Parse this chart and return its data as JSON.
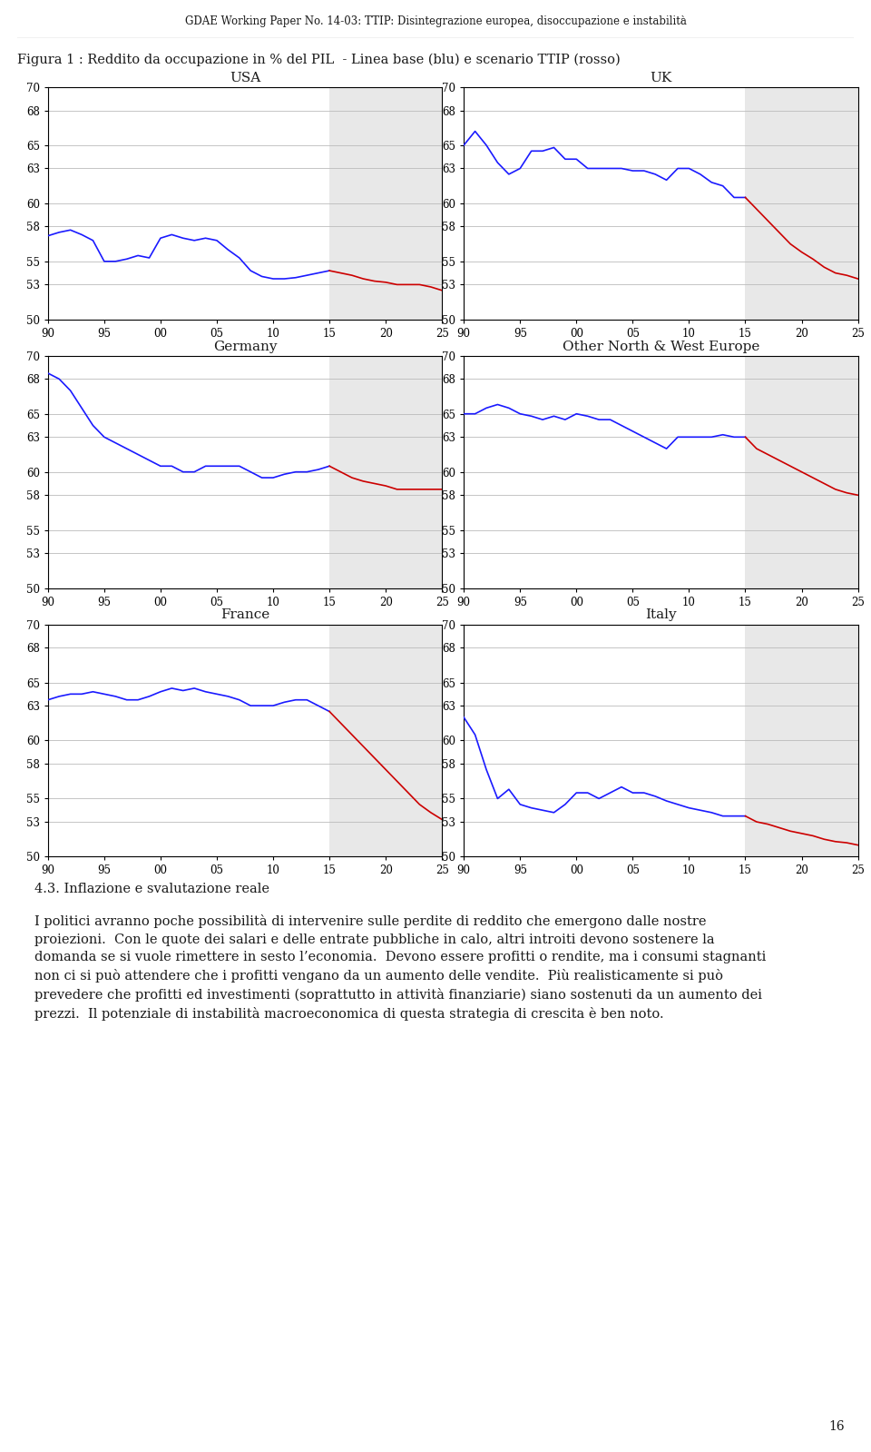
{
  "header": "GDAE Working Paper No. 14-03: TTIP: Disintegrazione europea, disoccupazione e instabilità",
  "figure_title": "Figura 1 : Reddito da occupazione in % del PIL  - Linea base (blu) e scenario TTIP (rosso)",
  "subplots": [
    {
      "title": "USA",
      "blue_x": [
        90,
        91,
        92,
        93,
        94,
        95,
        96,
        97,
        98,
        99,
        100,
        101,
        102,
        103,
        104,
        105,
        106,
        107,
        108,
        109,
        110,
        111,
        112,
        113,
        114,
        115
      ],
      "blue_y": [
        57.2,
        57.5,
        57.7,
        57.3,
        56.8,
        55.0,
        55.0,
        55.2,
        55.5,
        55.3,
        57.0,
        57.3,
        57.0,
        56.8,
        57.0,
        56.8,
        56.0,
        55.3,
        54.2,
        53.7,
        53.5,
        53.5,
        53.6,
        53.8,
        54.0,
        54.2
      ],
      "red_x": [
        115,
        116,
        117,
        118,
        119,
        120,
        121,
        122,
        123,
        124,
        125
      ],
      "red_y": [
        54.2,
        54.0,
        53.8,
        53.5,
        53.3,
        53.2,
        53.0,
        53.0,
        53.0,
        52.8,
        52.5
      ],
      "shade_start": 115,
      "shade_end": 125,
      "ylim": [
        50,
        70
      ],
      "yticks": [
        50,
        53,
        55,
        58,
        60,
        63,
        65,
        68,
        70
      ]
    },
    {
      "title": "UK",
      "blue_x": [
        90,
        91,
        92,
        93,
        94,
        95,
        96,
        97,
        98,
        99,
        100,
        101,
        102,
        103,
        104,
        105,
        106,
        107,
        108,
        109,
        110,
        111,
        112,
        113,
        114,
        115
      ],
      "blue_y": [
        65.0,
        66.2,
        65.0,
        63.5,
        62.5,
        63.0,
        64.5,
        64.5,
        64.8,
        63.8,
        63.8,
        63.0,
        63.0,
        63.0,
        63.0,
        62.8,
        62.8,
        62.5,
        62.0,
        63.0,
        63.0,
        62.5,
        61.8,
        61.5,
        60.5,
        60.5
      ],
      "red_x": [
        115,
        116,
        117,
        118,
        119,
        120,
        121,
        122,
        123,
        124,
        125
      ],
      "red_y": [
        60.5,
        59.5,
        58.5,
        57.5,
        56.5,
        55.8,
        55.2,
        54.5,
        54.0,
        53.8,
        53.5
      ],
      "shade_start": 115,
      "shade_end": 125,
      "ylim": [
        50,
        70
      ],
      "yticks": [
        50,
        53,
        55,
        58,
        60,
        63,
        65,
        68,
        70
      ]
    },
    {
      "title": "Germany",
      "blue_x": [
        90,
        91,
        92,
        93,
        94,
        95,
        96,
        97,
        98,
        99,
        100,
        101,
        102,
        103,
        104,
        105,
        106,
        107,
        108,
        109,
        110,
        111,
        112,
        113,
        114,
        115
      ],
      "blue_y": [
        68.5,
        68.0,
        67.0,
        65.5,
        64.0,
        63.0,
        62.5,
        62.0,
        61.5,
        61.0,
        60.5,
        60.5,
        60.0,
        60.0,
        60.5,
        60.5,
        60.5,
        60.5,
        60.0,
        59.5,
        59.5,
        59.8,
        60.0,
        60.0,
        60.2,
        60.5
      ],
      "red_x": [
        115,
        116,
        117,
        118,
        119,
        120,
        121,
        122,
        123,
        124,
        125
      ],
      "red_y": [
        60.5,
        60.0,
        59.5,
        59.2,
        59.0,
        58.8,
        58.5,
        58.5,
        58.5,
        58.5,
        58.5
      ],
      "shade_start": 115,
      "shade_end": 125,
      "ylim": [
        50,
        70
      ],
      "yticks": [
        50,
        53,
        55,
        58,
        60,
        63,
        65,
        68,
        70
      ]
    },
    {
      "title": "Other North & West Europe",
      "blue_x": [
        90,
        91,
        92,
        93,
        94,
        95,
        96,
        97,
        98,
        99,
        100,
        101,
        102,
        103,
        104,
        105,
        106,
        107,
        108,
        109,
        110,
        111,
        112,
        113,
        114,
        115
      ],
      "blue_y": [
        65.0,
        65.0,
        65.5,
        65.8,
        65.5,
        65.0,
        64.8,
        64.5,
        64.8,
        64.5,
        65.0,
        64.8,
        64.5,
        64.5,
        64.0,
        63.5,
        63.0,
        62.5,
        62.0,
        63.0,
        63.0,
        63.0,
        63.0,
        63.2,
        63.0,
        63.0
      ],
      "red_x": [
        115,
        116,
        117,
        118,
        119,
        120,
        121,
        122,
        123,
        124,
        125
      ],
      "red_y": [
        63.0,
        62.0,
        61.5,
        61.0,
        60.5,
        60.0,
        59.5,
        59.0,
        58.5,
        58.2,
        58.0
      ],
      "shade_start": 115,
      "shade_end": 125,
      "ylim": [
        50,
        70
      ],
      "yticks": [
        50,
        53,
        55,
        58,
        60,
        63,
        65,
        68,
        70
      ]
    },
    {
      "title": "France",
      "blue_x": [
        90,
        91,
        92,
        93,
        94,
        95,
        96,
        97,
        98,
        99,
        100,
        101,
        102,
        103,
        104,
        105,
        106,
        107,
        108,
        109,
        110,
        111,
        112,
        113,
        114,
        115
      ],
      "blue_y": [
        63.5,
        63.8,
        64.0,
        64.0,
        64.2,
        64.0,
        63.8,
        63.5,
        63.5,
        63.8,
        64.2,
        64.5,
        64.3,
        64.5,
        64.2,
        64.0,
        63.8,
        63.5,
        63.0,
        63.0,
        63.0,
        63.3,
        63.5,
        63.5,
        63.0,
        62.5
      ],
      "red_x": [
        115,
        116,
        117,
        118,
        119,
        120,
        121,
        122,
        123,
        124,
        125
      ],
      "red_y": [
        62.5,
        61.5,
        60.5,
        59.5,
        58.5,
        57.5,
        56.5,
        55.5,
        54.5,
        53.8,
        53.2
      ],
      "shade_start": 115,
      "shade_end": 125,
      "ylim": [
        50,
        70
      ],
      "yticks": [
        50,
        53,
        55,
        58,
        60,
        63,
        65,
        68,
        70
      ]
    },
    {
      "title": "Italy",
      "blue_x": [
        90,
        91,
        92,
        93,
        94,
        95,
        96,
        97,
        98,
        99,
        100,
        101,
        102,
        103,
        104,
        105,
        106,
        107,
        108,
        109,
        110,
        111,
        112,
        113,
        114,
        115
      ],
      "blue_y": [
        62.0,
        60.5,
        57.5,
        55.0,
        55.8,
        54.5,
        54.2,
        54.0,
        53.8,
        54.5,
        55.5,
        55.5,
        55.0,
        55.5,
        56.0,
        55.5,
        55.5,
        55.2,
        54.8,
        54.5,
        54.2,
        54.0,
        53.8,
        53.5,
        53.5,
        53.5
      ],
      "red_x": [
        115,
        116,
        117,
        118,
        119,
        120,
        121,
        122,
        123,
        124,
        125
      ],
      "red_y": [
        53.5,
        53.0,
        52.8,
        52.5,
        52.2,
        52.0,
        51.8,
        51.5,
        51.3,
        51.2,
        51.0
      ],
      "shade_start": 115,
      "shade_end": 125,
      "ylim": [
        50,
        70
      ],
      "yticks": [
        50,
        53,
        55,
        58,
        60,
        63,
        65,
        68,
        70
      ]
    }
  ],
  "xtick_labels": [
    "90",
    "95",
    "00",
    "05",
    "10",
    "15",
    "20",
    "25"
  ],
  "xtick_positions": [
    90,
    95,
    100,
    105,
    110,
    115,
    120,
    125
  ],
  "footer_section": "4.3. Inflazione e svalutazione reale",
  "footer_body": "I politici avranno poche possibilità di intervenire sulle perdite di reddito che emergono dalle nostre proiezioni.  Con le quote dei salari e delle entrate pubbliche in calo, altri introiti devono sostenere la domanda se si vuole rimettere in sesto l’economia.  Devono essere profitti o rendite, ma i consumi stagnanti non ci si può attendere che i profitti vengano da un aumento delle vendite.  Più realisticamente si può prevedere che profitti ed investimenti (soprattutto in attività finanziarie) siano sostenuti da un aumento dei prezzi.  Il potenziale di instabilità macroeconomica di questa strategia di crescita è ben noto.",
  "page_number": "16",
  "shade_color": "#e8e8e8",
  "blue_color": "#1a1aff",
  "red_color": "#cc0000",
  "grid_color": "#bbbbbb",
  "text_color": "#1a1a1a"
}
